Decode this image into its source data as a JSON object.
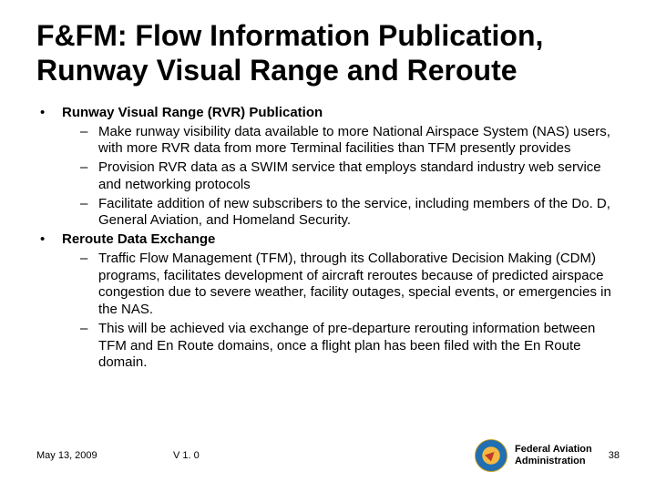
{
  "colors": {
    "text": "#000000",
    "background": "#ffffff"
  },
  "typography": {
    "title_fontsize_pt": 24,
    "title_weight": "bold",
    "body_fontsize_pt": 15,
    "footer_fontsize_pt": 11
  },
  "title": "F&FM: Flow Information Publication, Runway Visual Range and Reroute",
  "bullets": [
    {
      "label": "Runway Visual Range (RVR) Publication",
      "children": [
        "Make runway visibility data available to more National Airspace System (NAS) users, with more RVR data from more Terminal facilities  than TFM presently provides",
        "Provision RVR data as a SWIM service that employs standard industry web service and networking protocols",
        "Facilitate  addition of new subscribers to the service, including members of the Do. D, General Aviation, and Homeland Security."
      ]
    },
    {
      "label": "Reroute Data Exchange",
      "children": [
        "Traffic Flow Management (TFM), through its Collaborative Decision Making (CDM) programs, facilitates development of aircraft reroutes because of predicted airspace congestion due to severe weather, facility outages, special events, or emergencies in the NAS.",
        "This will be achieved via exchange of pre-departure rerouting information between TFM and En Route domains, once a flight plan has been filed with the En Route domain."
      ]
    }
  ],
  "footer": {
    "date": "May 13, 2009",
    "version": "V 1. 0",
    "org_line1": "Federal Aviation",
    "org_line2": "Administration",
    "page": "38"
  }
}
